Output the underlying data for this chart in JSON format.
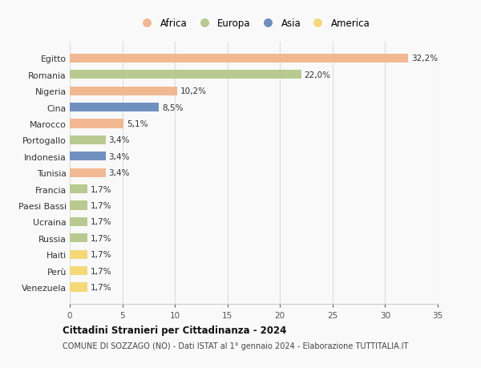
{
  "countries": [
    "Egitto",
    "Romania",
    "Nigeria",
    "Cina",
    "Marocco",
    "Portogallo",
    "Indonesia",
    "Tunisia",
    "Francia",
    "Paesi Bassi",
    "Ucraina",
    "Russia",
    "Haiti",
    "Perù",
    "Venezuela"
  ],
  "values": [
    32.2,
    22.0,
    10.2,
    8.5,
    5.1,
    3.4,
    3.4,
    3.4,
    1.7,
    1.7,
    1.7,
    1.7,
    1.7,
    1.7,
    1.7
  ],
  "labels": [
    "32,2%",
    "22,0%",
    "10,2%",
    "8,5%",
    "5,1%",
    "3,4%",
    "3,4%",
    "3,4%",
    "1,7%",
    "1,7%",
    "1,7%",
    "1,7%",
    "1,7%",
    "1,7%",
    "1,7%"
  ],
  "continents": [
    "Africa",
    "Europa",
    "Africa",
    "Asia",
    "Africa",
    "Europa",
    "Asia",
    "Africa",
    "Europa",
    "Europa",
    "Europa",
    "Europa",
    "America",
    "America",
    "America"
  ],
  "continent_colors": {
    "Africa": "#F2B892",
    "Europa": "#B8CA90",
    "Asia": "#7090C0",
    "America": "#F5D878"
  },
  "legend_order": [
    "Africa",
    "Europa",
    "Asia",
    "America"
  ],
  "title": "Cittadini Stranieri per Cittadinanza - 2024",
  "subtitle": "COMUNE DI SOZZAGO (NO) - Dati ISTAT al 1° gennaio 2024 - Elaborazione TUTTITALIA.IT",
  "xlim": [
    0,
    35
  ],
  "xticks": [
    0,
    5,
    10,
    15,
    20,
    25,
    30,
    35
  ],
  "background_color": "#f9f9f9",
  "grid_color": "#dddddd",
  "bar_height": 0.55
}
